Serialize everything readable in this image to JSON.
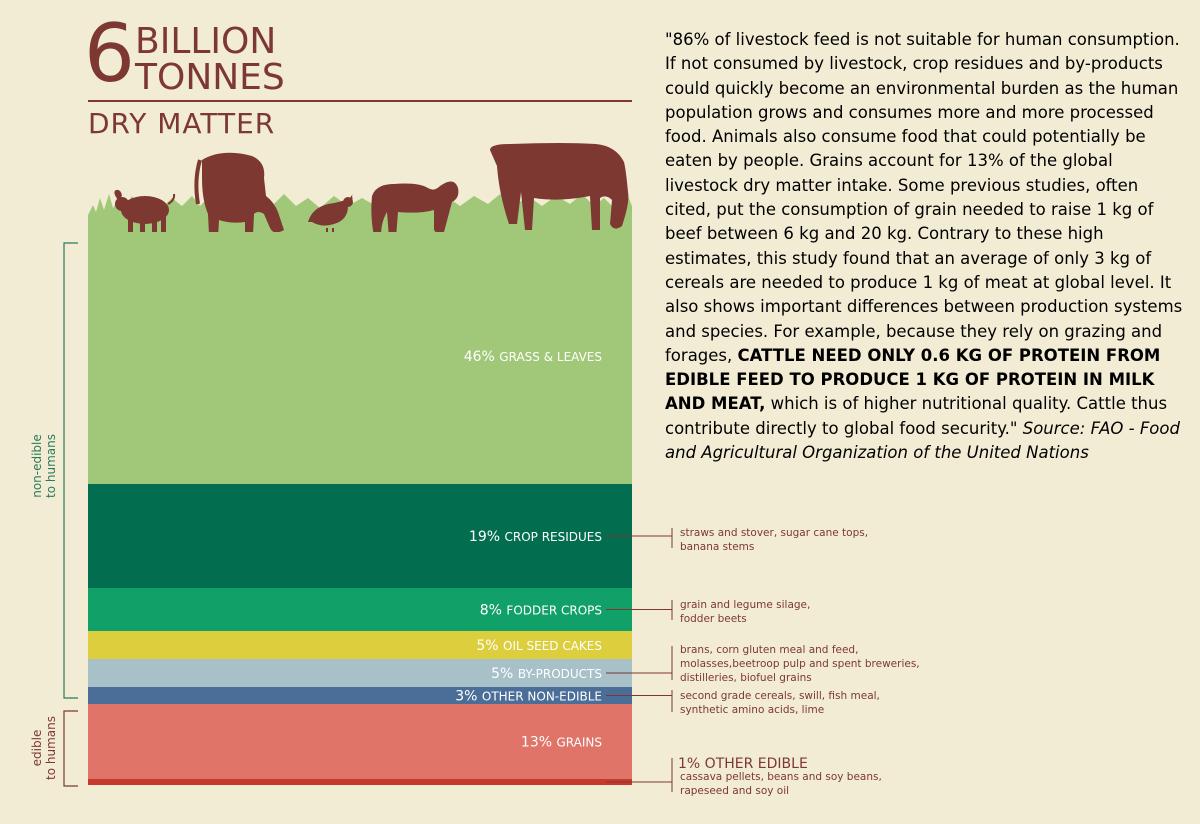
{
  "header": {
    "big_number": "6",
    "line1": "BILLION",
    "line2": "TONNES",
    "subtitle": "DRY MATTER"
  },
  "colors": {
    "text_brown": "#7d3832",
    "grass": "#a0c878",
    "crop_residues": "#036d50",
    "fodder_crops": "#11a067",
    "oil_seed_cakes": "#dcce3c",
    "by_products": "#a8c0c8",
    "other_non_edible": "#4b6e98",
    "grains": "#e07468",
    "other_edible": "#c63a2c",
    "animal": "#7d3832",
    "side_label": "#2a7a5c"
  },
  "chart_data": {
    "type": "bar",
    "stacked": true,
    "total": "6 billion tonnes dry matter",
    "segments": [
      {
        "pct": 46,
        "label": "46%",
        "name": "GRASS & LEAVES",
        "group": "non-edible"
      },
      {
        "pct": 19,
        "label": "19%",
        "name": "CROP RESIDUES",
        "group": "non-edible"
      },
      {
        "pct": 8,
        "label": "8%",
        "name": "FODDER CROPS",
        "group": "non-edible"
      },
      {
        "pct": 5,
        "label": "5%",
        "name": "OIL SEED CAKES",
        "group": "non-edible"
      },
      {
        "pct": 5,
        "label": "5%",
        "name": "BY-PRODUCTS",
        "group": "non-edible"
      },
      {
        "pct": 3,
        "label": "3%",
        "name": "OTHER NON-EDIBLE",
        "group": "non-edible"
      },
      {
        "pct": 13,
        "label": "13%",
        "name": "GRAINS",
        "group": "edible"
      },
      {
        "pct": 1,
        "label": "1%",
        "name": "OTHER EDIBLE",
        "group": "edible"
      }
    ],
    "groups": {
      "non_edible": "non-edible\nto humans",
      "edible": "edible\nto humans"
    },
    "annotations": {
      "crop_residues": [
        "straws and stover, sugar cane tops,",
        "banana stems"
      ],
      "fodder_crops": [
        "grain and legume silage,",
        "fodder beets"
      ],
      "by_products": [
        "brans, corn gluten meal and feed,",
        "molasses,beetroop pulp and spent breweries,",
        "distilleries, biofuel grains"
      ],
      "other_non_edible": [
        "second grade cereals, swill, fish meal,",
        "synthetic amino acids, lime"
      ],
      "other_edible": [
        "cassava pellets, beans and soy beans,",
        "rapeseed and soy oil"
      ]
    }
  },
  "side_labels": {
    "non_edible_l1": "non-edible",
    "non_edible_l2": "to humans",
    "edible_l1": "edible",
    "edible_l2": "to humans"
  },
  "quote": {
    "p1": "\"86% of livestock feed is not suitable for human consumption. If not consumed by livestock, crop residues and by-products could quickly become an environmental burden as the human population grows and consumes more and more processed food. Animals also consume food that could potentially be eaten by people. Grains account for 13% of the global livestock dry matter intake. Some previous studies, often cited, put the consumption of grain needed to raise 1 kg of beef between 6 kg and 20 kg. Contrary to these high estimates, this study found that an average of only 3 kg of cereals are needed to produce 1 kg of meat at global level. It also shows important differences between production systems and species.",
    "p2": "For example, because they rely on grazing and forages,",
    "bold": "CATTLE NEED ONLY 0.6 KG OF PROTEIN FROM EDIBLE FEED TO PRODUCE 1 KG OF PROTEIN IN MILK AND MEAT,",
    "p3": " which is of higher nutritional quality. Cattle thus contribute directly to global food security.\" ",
    "source": "Source: FAO - Food and Agricultural Organization of the United Nations"
  },
  "icons": [
    "pig-icon",
    "goat-icon",
    "chicken-icon",
    "sheep-icon",
    "cow-icon"
  ]
}
